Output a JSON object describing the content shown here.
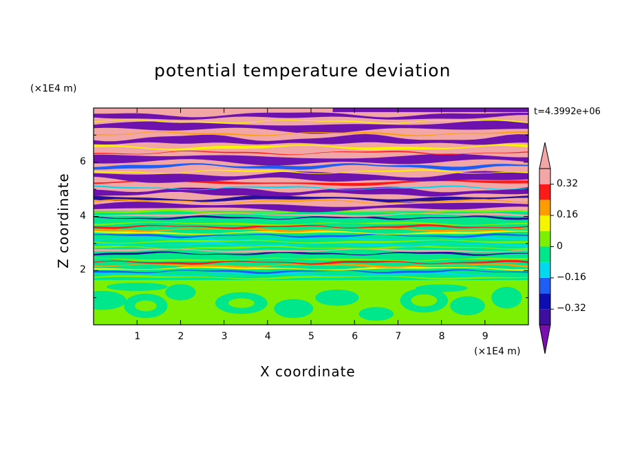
{
  "chart_data": {
    "type": "heatmap",
    "title": "potential temperature deviation",
    "xlabel": "X coordinate",
    "ylabel": "Z coordinate",
    "x_unit": "(×1E4 m)",
    "y_unit": "(×1E4 m)",
    "time_label": "t=4.3992e+06",
    "xlim": [
      0,
      10
    ],
    "ylim": [
      0,
      8
    ],
    "x_ticks": [
      1,
      2,
      3,
      4,
      5,
      6,
      7,
      8,
      9
    ],
    "y_ticks": [
      2,
      4,
      6
    ],
    "colorbar": {
      "levels": [
        -0.4,
        -0.32,
        -0.24,
        -0.16,
        -0.08,
        0,
        0.08,
        0.16,
        0.24,
        0.32,
        0.4
      ],
      "tick_values": [
        0.32,
        0.16,
        0,
        -0.16,
        -0.32
      ],
      "tick_labels": [
        "0.32",
        "0.16",
        "0",
        "−0.16",
        "−0.32"
      ],
      "colors": [
        "#7a0fb0",
        "#3d0f9e",
        "#0d0db4",
        "#1e5ef5",
        "#00d9f0",
        "#00e68a",
        "#7cf000",
        "#f5f500",
        "#ff9d00",
        "#ff1a1a",
        "#f2a6a6"
      ],
      "extend": "both"
    },
    "description_bands": [
      {
        "z_range": [
          0,
          1.6
        ],
        "dominant_level": 0.04
      },
      {
        "z_range": [
          1.6,
          4.2
        ],
        "dominant_level": 0
      },
      {
        "z_range": [
          4.2,
          8
        ],
        "dominant_level": "alternating -0.44 / 0.44"
      }
    ]
  },
  "colors": {
    "pink": "#f2a6a6",
    "purple": "#6e12ad",
    "indigo": "#2a0f9a",
    "blue": "#1e5ef5",
    "cyan": "#00d9f0",
    "teal": "#00e68a",
    "lime": "#7cf000",
    "yellow": "#f5f500",
    "orange": "#ff9d00",
    "red": "#ff1a1a"
  }
}
